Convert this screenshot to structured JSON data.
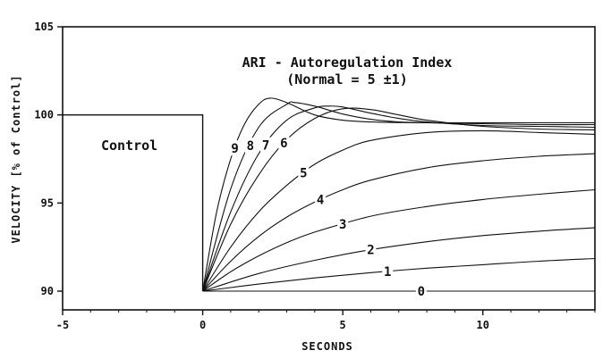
{
  "chart_data": {
    "type": "line",
    "title": "ARI - Autoregulation Index",
    "subtitle": "(Normal = 5 ±1)",
    "xlabel": "SECONDS",
    "ylabel": "VELOCITY [% of Control]",
    "xlim": [
      -5,
      14
    ],
    "ylim": [
      89,
      105
    ],
    "x_ticks": [
      -5,
      0,
      5,
      10
    ],
    "x_tick_labels": [
      "-5",
      "0",
      "5",
      "10"
    ],
    "y_ticks": [
      90,
      95,
      100,
      105
    ],
    "y_tick_labels": [
      "90",
      "95",
      "100",
      "105"
    ],
    "grid": false,
    "legend": "none",
    "annotation": "Control",
    "control": {
      "level": 100,
      "from": -5,
      "step_at": 0,
      "drop_to": 90
    },
    "series": [
      {
        "name": "0",
        "x": [
          0,
          14
        ],
        "y": [
          90,
          90
        ]
      },
      {
        "name": "1",
        "x": [
          0,
          2,
          4,
          6,
          8,
          10,
          12,
          14
        ],
        "y": [
          90,
          90.4,
          90.75,
          91.05,
          91.3,
          91.5,
          91.7,
          91.85
        ]
      },
      {
        "name": "2",
        "x": [
          0,
          2,
          4,
          6,
          8,
          10,
          12,
          14
        ],
        "y": [
          90,
          91.0,
          91.75,
          92.35,
          92.8,
          93.15,
          93.4,
          93.6
        ]
      },
      {
        "name": "3",
        "x": [
          0,
          1,
          2,
          3,
          4,
          6,
          8,
          10,
          12,
          14
        ],
        "y": [
          90,
          91.1,
          92.0,
          92.75,
          93.35,
          94.25,
          94.8,
          95.2,
          95.5,
          95.75
        ]
      },
      {
        "name": "4",
        "x": [
          0,
          1,
          2,
          3,
          4,
          5,
          6,
          8,
          10,
          12,
          14
        ],
        "y": [
          90,
          91.7,
          93.1,
          94.2,
          95.05,
          95.75,
          96.3,
          97.0,
          97.4,
          97.65,
          97.8
        ]
      },
      {
        "name": "5",
        "x": [
          0,
          1,
          2,
          3,
          4,
          5,
          6,
          8,
          10,
          12,
          14
        ],
        "y": [
          90,
          92.5,
          94.5,
          96.0,
          97.2,
          98.0,
          98.55,
          99.0,
          99.1,
          99.0,
          98.9
        ]
      },
      {
        "name": "6",
        "x": [
          0,
          1,
          2,
          3,
          4,
          5,
          6,
          7,
          8,
          10,
          12,
          14
        ],
        "y": [
          90,
          93.8,
          96.6,
          98.6,
          99.8,
          100.35,
          100.3,
          100.0,
          99.7,
          99.35,
          99.2,
          99.15
        ]
      },
      {
        "name": "7",
        "x": [
          0,
          1,
          2,
          3,
          4,
          4.5,
          5,
          6,
          7,
          8,
          10,
          12,
          14
        ],
        "y": [
          90,
          94.5,
          97.8,
          99.7,
          100.4,
          100.5,
          100.45,
          100.1,
          99.8,
          99.6,
          99.4,
          99.35,
          99.3
        ]
      },
      {
        "name": "8",
        "x": [
          0,
          1,
          2,
          3,
          3.3,
          4,
          5,
          6,
          7,
          8,
          10,
          12,
          14
        ],
        "y": [
          90,
          95.8,
          99.3,
          100.6,
          100.7,
          100.5,
          100.05,
          99.75,
          99.6,
          99.55,
          99.5,
          99.45,
          99.45
        ]
      },
      {
        "name": "9",
        "x": [
          0,
          0.5,
          1,
          1.5,
          2,
          2.4,
          3,
          4,
          5,
          6,
          8,
          10,
          14
        ],
        "y": [
          90,
          94.5,
          97.5,
          99.5,
          100.6,
          100.95,
          100.7,
          100.0,
          99.7,
          99.6,
          99.55,
          99.55,
          99.55
        ]
      }
    ]
  }
}
